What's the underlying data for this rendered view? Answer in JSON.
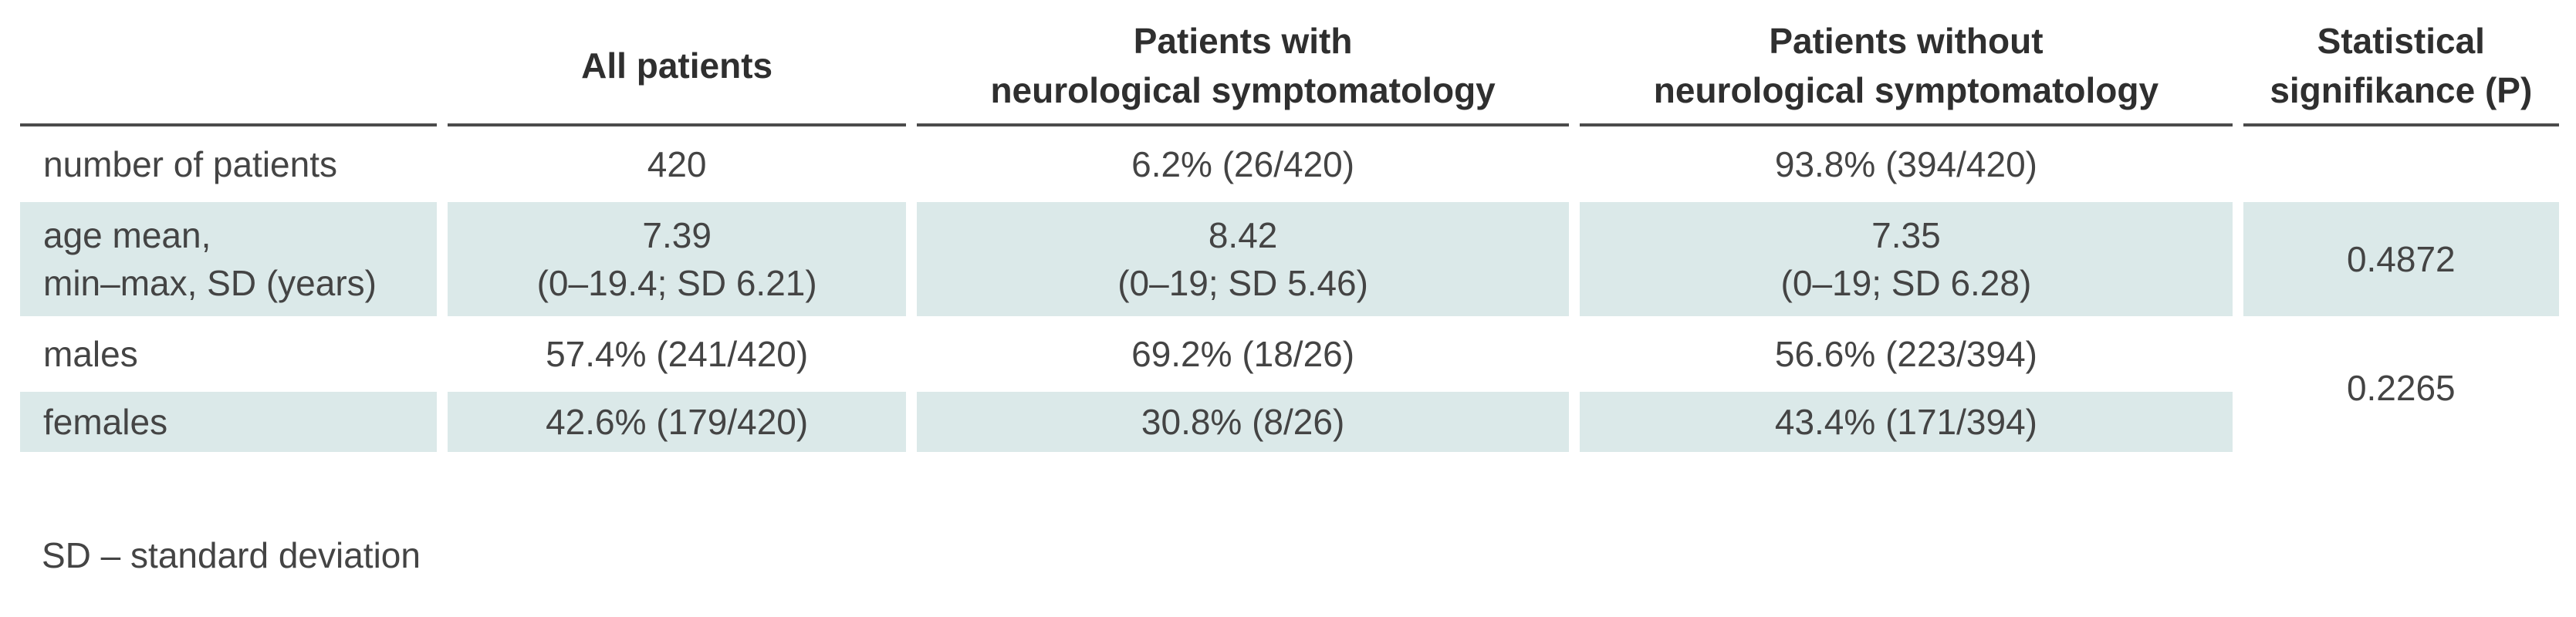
{
  "table": {
    "headers": [
      {
        "lines": [
          ""
        ]
      },
      {
        "lines": [
          "All patients"
        ]
      },
      {
        "lines": [
          "Patients with",
          "neurological symptomatology"
        ]
      },
      {
        "lines": [
          "Patients without",
          "neurological symptomatology"
        ]
      },
      {
        "lines": [
          "Statistical",
          "signifikance (P)"
        ]
      }
    ],
    "rows": {
      "number": {
        "label": "number of patients",
        "all": "420",
        "with": "6.2% (26/420)",
        "without": "93.8% (394/420)",
        "p": ""
      },
      "age": {
        "label_line1": "age mean,",
        "label_line2": "min–max, SD (years)",
        "all_line1": "7.39",
        "all_line2": "(0–19.4; SD 6.21)",
        "with_line1": "8.42",
        "with_line2": "(0–19; SD 5.46)",
        "without_line1": "7.35",
        "without_line2": "(0–19; SD 6.28)",
        "p": "0.4872"
      },
      "males": {
        "label": "males",
        "all": "57.4% (241/420)",
        "with": "69.2% (18/26)",
        "without": "56.6% (223/394)"
      },
      "females": {
        "label": "females",
        "all": "42.6% (179/420)",
        "with": "30.8% (8/26)",
        "without": "43.4% (171/394)"
      },
      "sex_p": "0.2265"
    }
  },
  "footnote": "SD – standard deviation",
  "colors": {
    "shade": "#dbe9e9",
    "text": "#444444",
    "rule": "#4b4b4b"
  }
}
